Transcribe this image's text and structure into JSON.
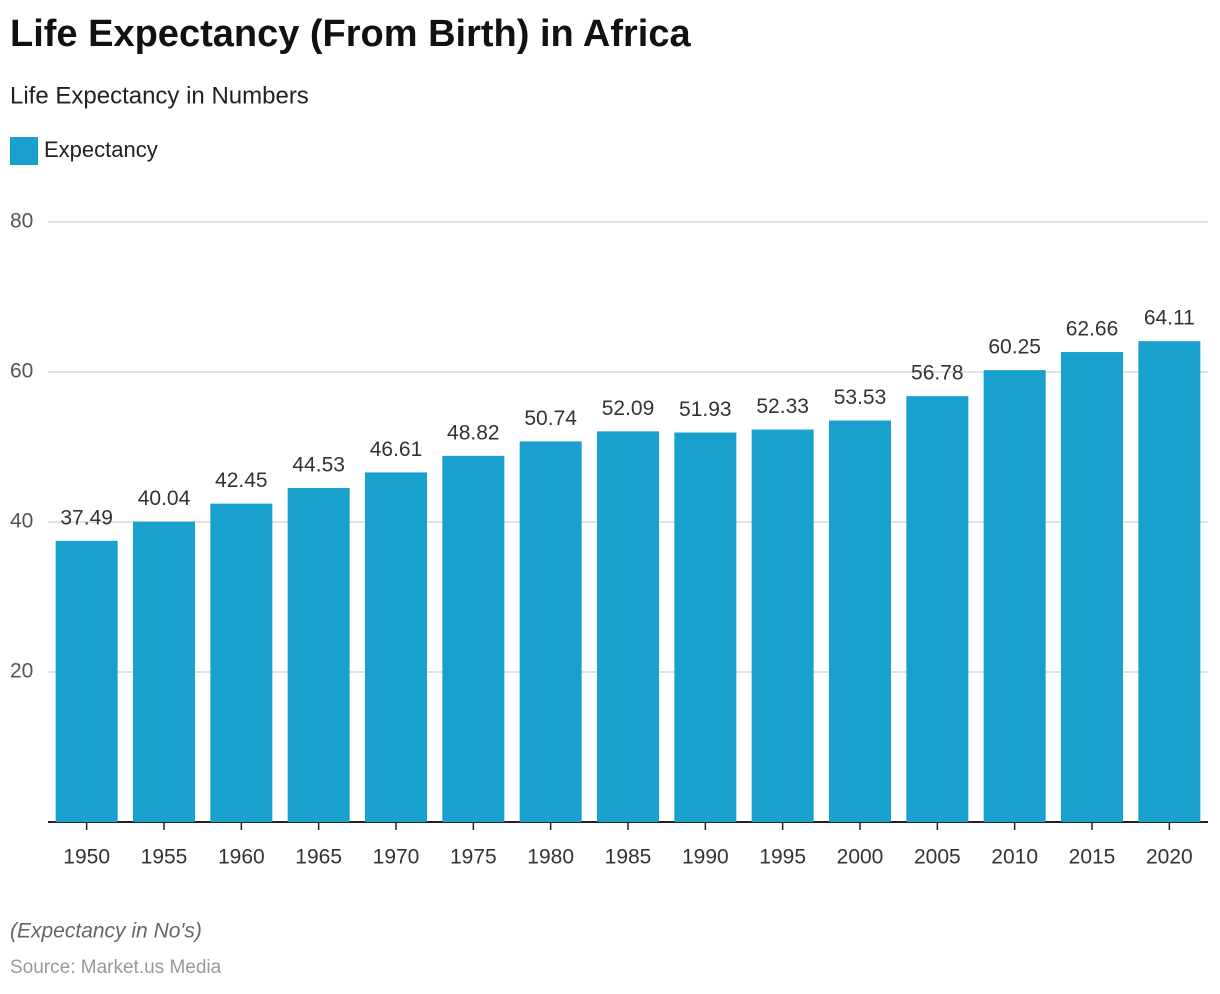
{
  "chart_data": {
    "type": "bar",
    "title": "Life Expectancy (From Birth) in Africa",
    "subtitle": "Life Expectancy in Numbers",
    "legend": "Expectancy",
    "color": "#1aa0cc",
    "categories": [
      "1950",
      "1955",
      "1960",
      "1965",
      "1970",
      "1975",
      "1980",
      "1985",
      "1990",
      "1995",
      "2000",
      "2005",
      "2010",
      "2015",
      "2020"
    ],
    "values": [
      37.49,
      40.04,
      42.45,
      44.53,
      46.61,
      48.82,
      50.74,
      52.09,
      51.93,
      52.33,
      53.53,
      56.78,
      60.25,
      62.66,
      64.11
    ],
    "ylim": [
      0,
      80
    ],
    "yticks": [
      20,
      40,
      60,
      80
    ],
    "grid": true,
    "note": "(Expectancy in No's)",
    "source": "Source: Market.us Media"
  }
}
